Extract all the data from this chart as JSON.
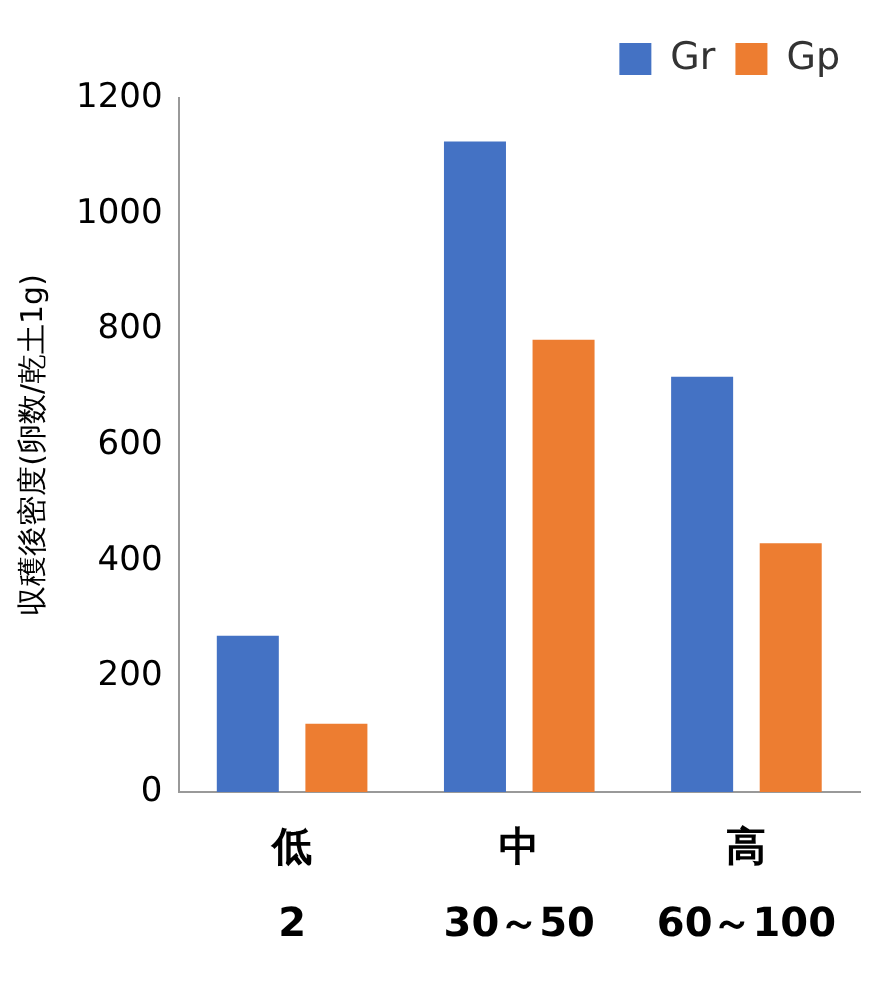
{
  "chart_data": {
    "type": "bar",
    "ylabel": "収穫後密度(卵数/乾土1g)",
    "categories": [
      "低\n2",
      "中\n30～50",
      "高\n60～100"
    ],
    "series": [
      {
        "name": "Gr",
        "color": "#4472c4",
        "values": [
          270,
          1125,
          718
        ]
      },
      {
        "name": "Gp",
        "color": "#ed7d31",
        "values": [
          118,
          782,
          430
        ]
      }
    ],
    "ylim": [
      0,
      1200
    ],
    "yticks": [
      0,
      200,
      400,
      600,
      800,
      1000,
      1200
    ],
    "grid": false,
    "legend": "top right"
  }
}
